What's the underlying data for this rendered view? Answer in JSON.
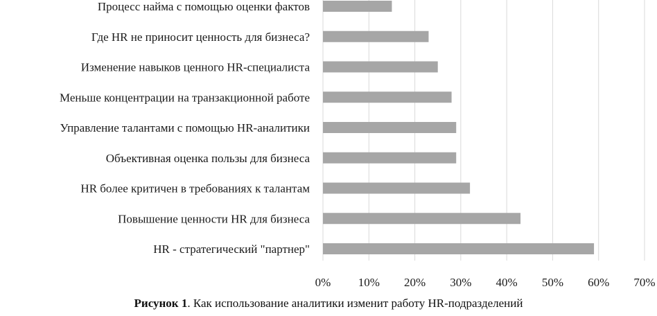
{
  "chart_data": {
    "type": "bar",
    "orientation": "horizontal",
    "categories": [
      "Процесс найма с помощью оценки фактов",
      "Где HR не приносит ценность для бизнеса?",
      "Изменение навыков ценного HR-специалиста",
      "Меньше концентрации на транзакционной работе",
      "Управление талантами с помощью HR-аналитики",
      "Объективная оценка пользы для бизнеса",
      "HR более критичен в требованиях к талантам",
      "Повышение ценности HR для бизнеса",
      "HR - стратегический \"партнер\""
    ],
    "values": [
      15,
      23,
      25,
      28,
      29,
      29,
      32,
      43,
      59
    ],
    "xlim": [
      0,
      70
    ],
    "x_ticks": [
      "0%",
      "10%",
      "20%",
      "30%",
      "40%",
      "50%",
      "60%",
      "70%"
    ],
    "x_tick_values": [
      0,
      10,
      20,
      30,
      40,
      50,
      60,
      70
    ],
    "unit": "%",
    "grid": true,
    "bar_color": "#a6a6a6",
    "grid_color": "#d9d9d9",
    "title": "",
    "xlabel": "",
    "ylabel": ""
  },
  "caption": {
    "label": "Рисунок 1",
    "text": ". Как использование аналитики изменит работу HR-подразделений"
  }
}
